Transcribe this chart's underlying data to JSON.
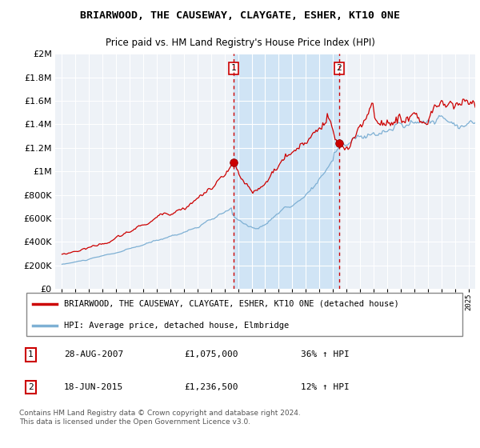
{
  "title": "BRIARWOOD, THE CAUSEWAY, CLAYGATE, ESHER, KT10 0NE",
  "subtitle": "Price paid vs. HM Land Registry's House Price Index (HPI)",
  "ylabel_values": [
    0,
    200000,
    400000,
    600000,
    800000,
    1000000,
    1200000,
    1400000,
    1600000,
    1800000,
    2000000
  ],
  "ylim": [
    0,
    2000000
  ],
  "background_color": "#ffffff",
  "plot_bg_color": "#eef2f7",
  "grid_color": "#ffffff",
  "red_line_color": "#cc0000",
  "blue_line_color": "#7eb0d4",
  "shade_color": "#d0e4f5",
  "transaction1_x": 2007.65,
  "transaction1_y": 1075000,
  "transaction2_x": 2015.45,
  "transaction2_y": 1236500,
  "legend_red": "BRIARWOOD, THE CAUSEWAY, CLAYGATE, ESHER, KT10 0NE (detached house)",
  "legend_blue": "HPI: Average price, detached house, Elmbridge",
  "t1_date": "28-AUG-2007",
  "t1_price": 1075000,
  "t1_hpi": "36% ↑ HPI",
  "t2_date": "18-JUN-2015",
  "t2_price": 1236500,
  "t2_hpi": "12% ↑ HPI",
  "footnote": "Contains HM Land Registry data © Crown copyright and database right 2024.\nThis data is licensed under the Open Government Licence v3.0.",
  "xlim_left": 1994.5,
  "xlim_right": 2025.5
}
